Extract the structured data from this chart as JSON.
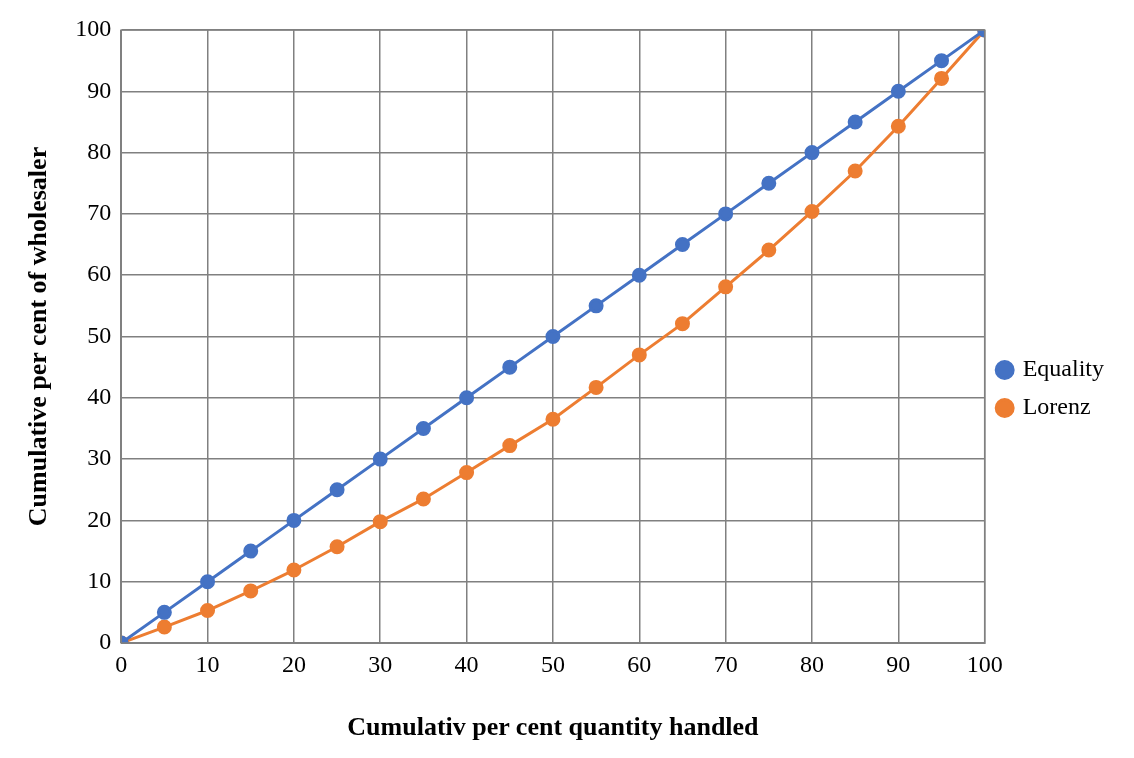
{
  "chart_data": {
    "type": "line",
    "xlabel": "Cumulativ per cent quantity handled",
    "ylabel": "Cumulative per cent of wholesaler",
    "x": [
      0,
      5,
      10,
      15,
      20,
      25,
      30,
      35,
      40,
      45,
      50,
      55,
      60,
      65,
      70,
      75,
      80,
      85,
      90,
      95,
      100
    ],
    "series": [
      {
        "name": "Equality",
        "color": "#4472c4",
        "values": [
          0,
          5,
          10,
          15,
          20,
          25,
          30,
          35,
          40,
          45,
          50,
          55,
          60,
          65,
          70,
          75,
          80,
          85,
          90,
          95,
          100
        ]
      },
      {
        "name": "Lorenz",
        "color": "#ed7d31",
        "values": [
          0,
          2.6,
          5.3,
          8.5,
          11.9,
          15.7,
          19.8,
          23.5,
          27.8,
          32.2,
          36.5,
          41.7,
          47,
          52.1,
          58.1,
          64.1,
          70.4,
          77,
          84.3,
          92.1,
          100
        ]
      }
    ],
    "xlim": [
      0,
      100
    ],
    "xticks": [
      0,
      10,
      20,
      30,
      40,
      50,
      60,
      70,
      80,
      90,
      100
    ],
    "ylim": [
      0,
      100
    ],
    "yticks": [
      0,
      10,
      20,
      30,
      40,
      50,
      60,
      70,
      80,
      90,
      100
    ],
    "grid": true,
    "legend": "right",
    "marker": "circle",
    "line_style": "solid"
  }
}
